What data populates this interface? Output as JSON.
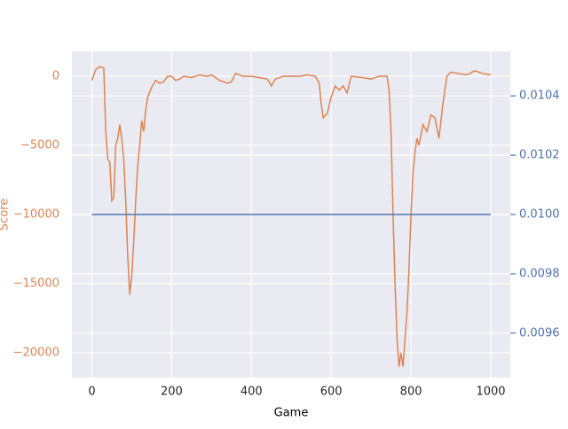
{
  "chart_data": {
    "type": "line",
    "xlabel": "Game",
    "ylabel": "Score",
    "xlim": [
      -49.95,
      1048.95
    ],
    "xticks": [
      0,
      200,
      400,
      600,
      800,
      1000
    ],
    "ylim": [
      -21800,
      1800
    ],
    "yticks": [
      {
        "value": -20000,
        "label": "−20000"
      },
      {
        "value": -15000,
        "label": "−15000"
      },
      {
        "value": -10000,
        "label": "−10000"
      },
      {
        "value": -5000,
        "label": "−5000"
      },
      0
    ],
    "y2lim": [
      0.00945,
      0.01055
    ],
    "y2ticks": [
      0.0096,
      0.0098,
      {
        "value": 0.01,
        "label": "0.0100"
      },
      0.0102,
      0.0104
    ],
    "grid": true,
    "ycolor": "#dd8452",
    "y2color": "#4c72b0",
    "series": [
      {
        "color": "#dd8452",
        "x": [
          0,
          10,
          20,
          30,
          35,
          40,
          45,
          50,
          55,
          60,
          65,
          70,
          75,
          80,
          85,
          90,
          95,
          100,
          105,
          110,
          115,
          120,
          125,
          130,
          135,
          140,
          150,
          160,
          170,
          180,
          190,
          200,
          210,
          220,
          230,
          250,
          270,
          290,
          300,
          320,
          340,
          350,
          360,
          380,
          400,
          420,
          440,
          450,
          460,
          480,
          500,
          520,
          540,
          560,
          570,
          575,
          580,
          590,
          600,
          610,
          620,
          630,
          640,
          650,
          680,
          700,
          720,
          740,
          745,
          750,
          755,
          760,
          765,
          770,
          775,
          780,
          785,
          790,
          795,
          800,
          805,
          810,
          815,
          820,
          830,
          840,
          850,
          860,
          870,
          880,
          890,
          900,
          920,
          940,
          960,
          980,
          1000
        ],
        "values": [
          -300,
          500,
          700,
          600,
          -4000,
          -6000,
          -6200,
          -9000,
          -8800,
          -5000,
          -4500,
          -3500,
          -4500,
          -6000,
          -9000,
          -13000,
          -15800,
          -14500,
          -12000,
          -9000,
          -6500,
          -5000,
          -3200,
          -4000,
          -2500,
          -1500,
          -800,
          -300,
          -500,
          -400,
          0,
          0,
          -300,
          -200,
          0,
          -100,
          100,
          0,
          100,
          -300,
          -500,
          -400,
          200,
          0,
          0,
          -100,
          -200,
          -700,
          -200,
          0,
          0,
          0,
          100,
          0,
          -500,
          -2000,
          -3000,
          -2700,
          -1500,
          -700,
          -1000,
          -700,
          -1200,
          0,
          -100,
          -200,
          0,
          0,
          -1000,
          -4000,
          -10000,
          -15000,
          -19000,
          -21000,
          -20000,
          -21000,
          -19000,
          -17000,
          -14000,
          -10000,
          -7000,
          -5500,
          -4500,
          -5000,
          -3500,
          -4000,
          -2800,
          -3000,
          -4500,
          -2000,
          0,
          300,
          200,
          100,
          400,
          200,
          100
        ]
      },
      {
        "color": "#4c72b0",
        "axis": "y2",
        "x": [
          0,
          1000
        ],
        "values": [
          0.01,
          0.01
        ]
      }
    ]
  }
}
